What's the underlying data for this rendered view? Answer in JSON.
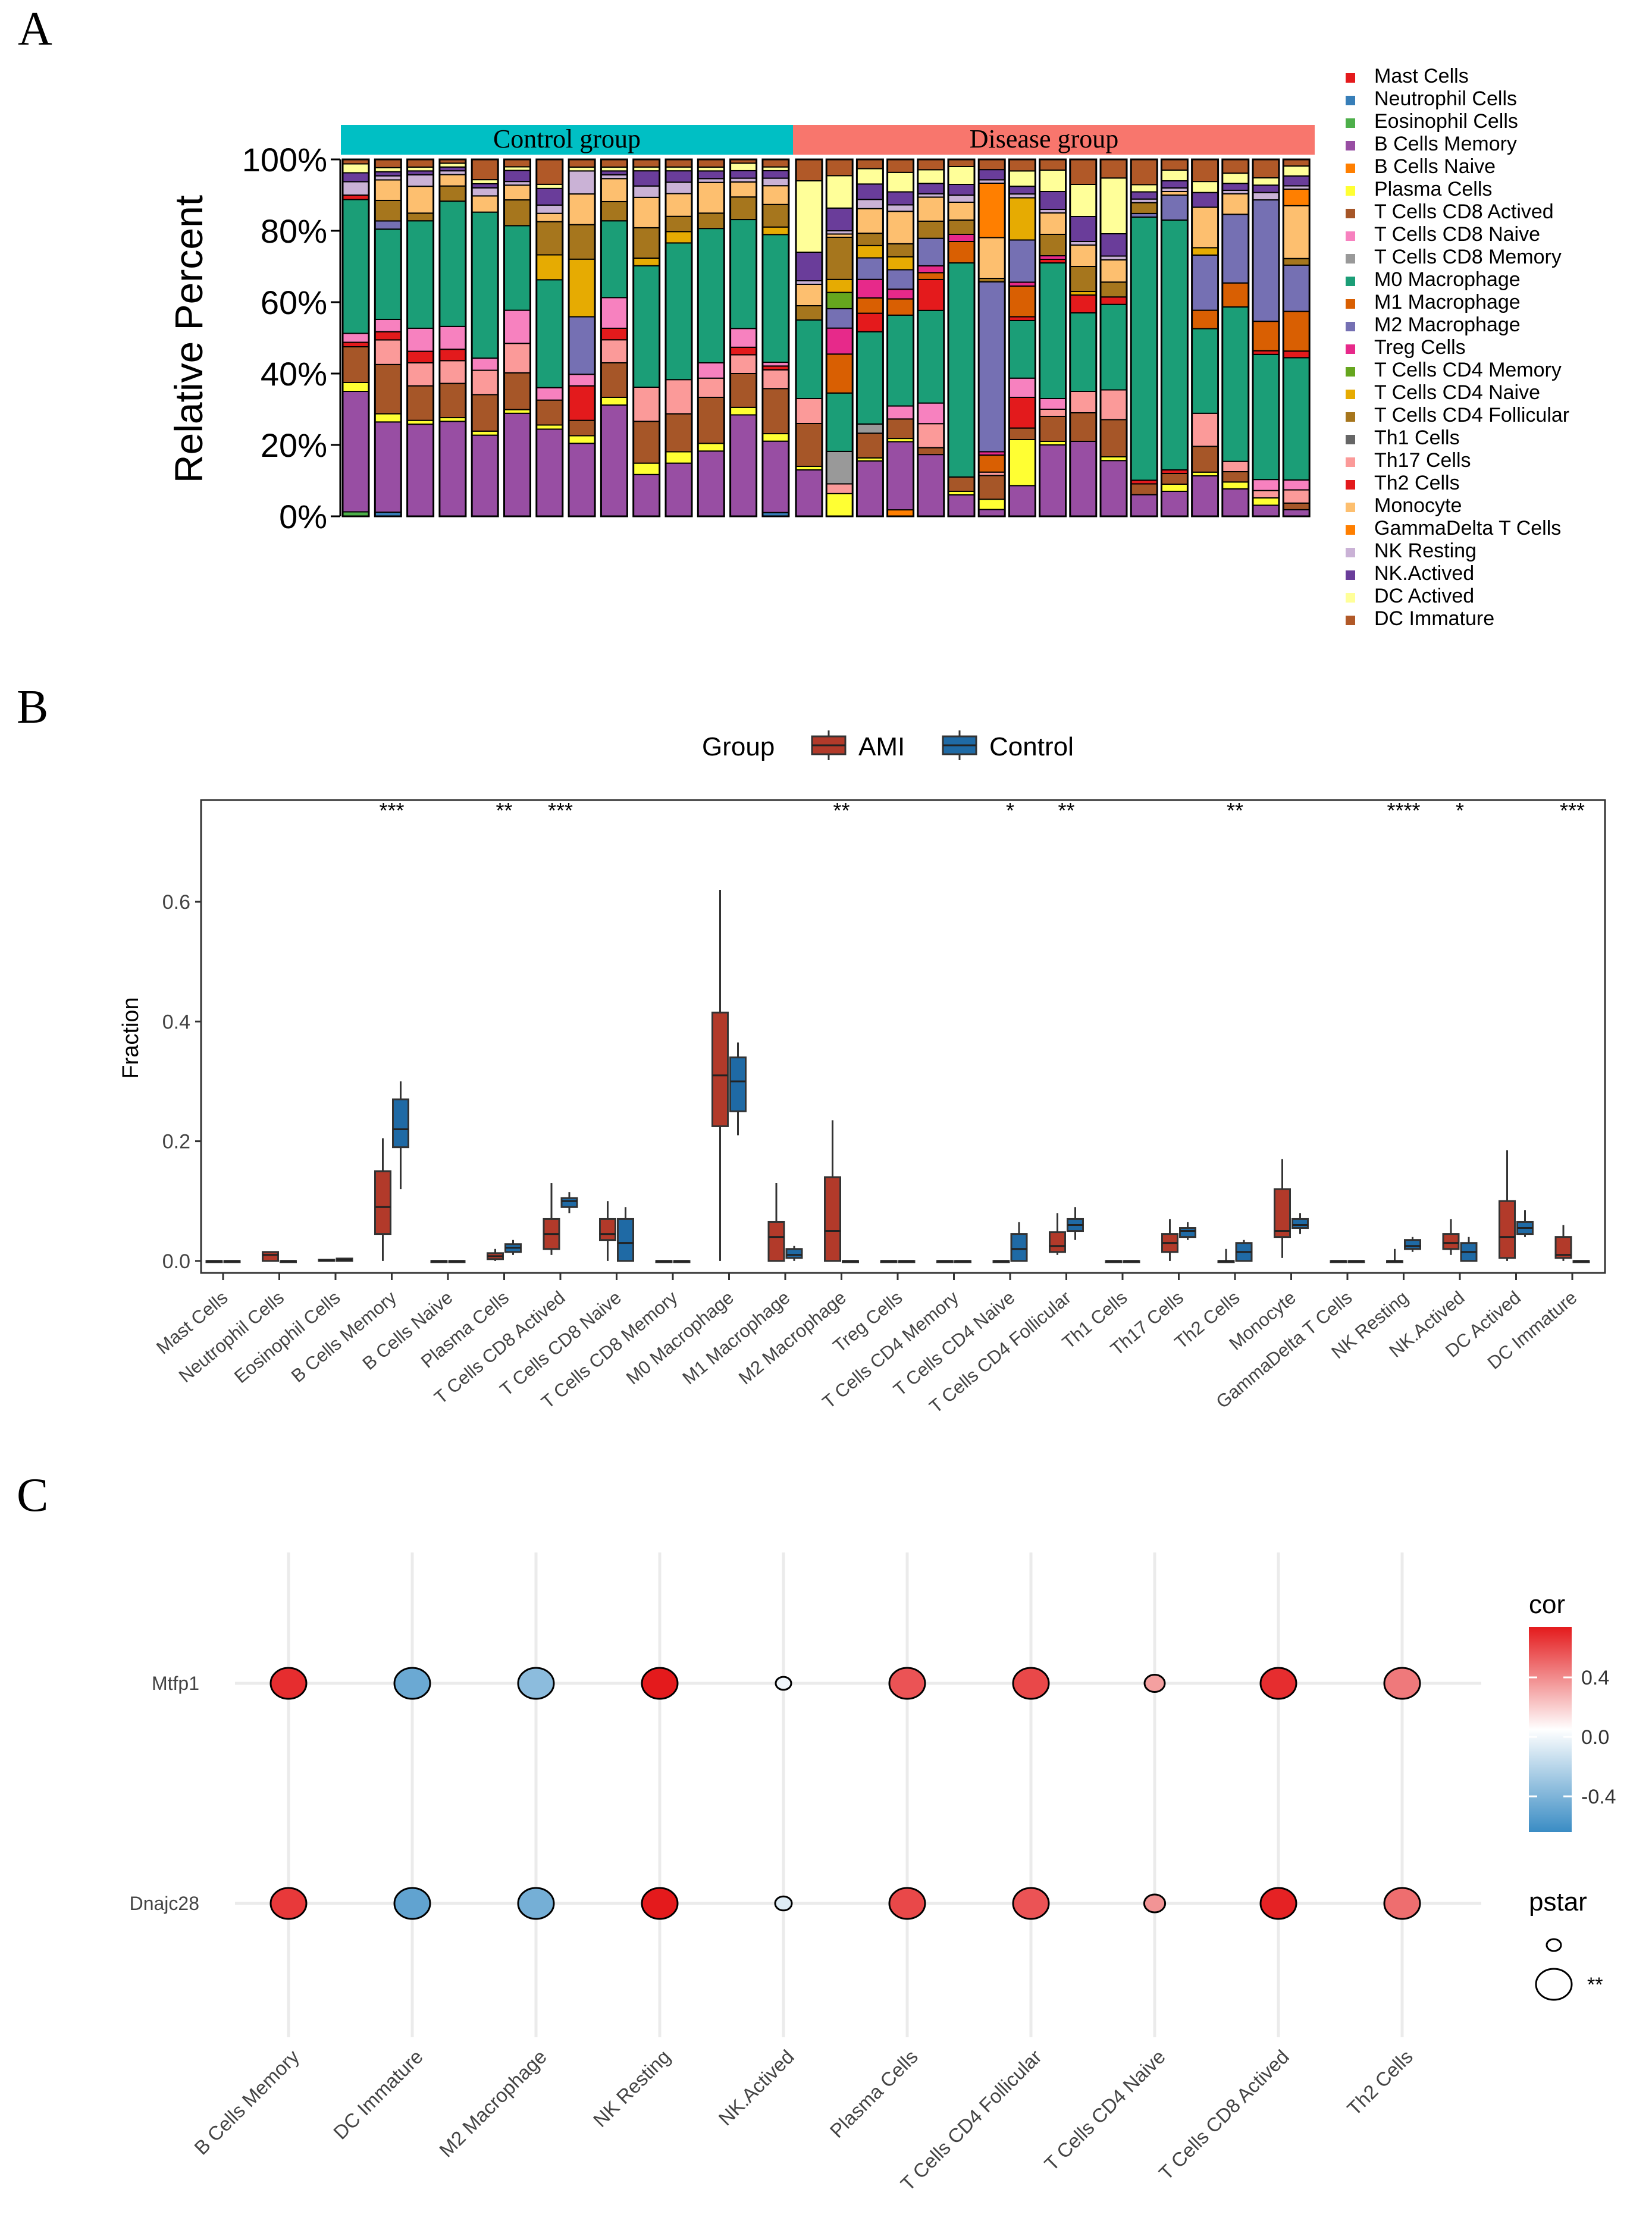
{
  "panel_labels": [
    "A",
    "B",
    "C"
  ],
  "cell_types": [
    "Mast Cells",
    "Neutrophil Cells",
    "Eosinophil Cells",
    "B Cells Memory",
    "B Cells Naive",
    "Plasma Cells",
    "T Cells CD8 Actived",
    "T Cells CD8 Naive",
    "T Cells CD8 Memory",
    "M0 Macrophage",
    "M1 Macrophage",
    "M2 Macrophage",
    "Treg Cells",
    "T Cells CD4 Memory",
    "T Cells CD4 Naive",
    "T Cells CD4 Follicular",
    "Th1 Cells",
    "Th17 Cells",
    "Th2 Cells",
    "Monocyte",
    "GammaDelta T Cells",
    "NK Resting",
    "NK.Actived",
    "DC Actived",
    "DC Immature"
  ],
  "chart_data": [
    {
      "type": "bar",
      "subtype": "stacked-100",
      "panel": "A",
      "ylabel": "Relative Percent",
      "yticks": [
        "0%",
        "20%",
        "40%",
        "60%",
        "80%",
        "100%"
      ],
      "ylim": [
        0,
        100
      ],
      "groups": [
        {
          "name": "Control group",
          "count": 14,
          "color": "#00BFC4"
        },
        {
          "name": "Disease group",
          "count": 17,
          "color": "#F8766D"
        }
      ],
      "legend": [
        "Mast Cells",
        "Neutrophil Cells",
        "Eosinophil Cells",
        "B Cells Memory",
        "B Cells Naive",
        "Plasma Cells",
        "T Cells CD8 Actived",
        "T Cells CD8 Naive",
        "T Cells CD8 Memory",
        "M0 Macrophage",
        "M1 Macrophage",
        "M2 Macrophage",
        "Treg Cells",
        "T Cells CD4 Memory",
        "T Cells CD4 Naive",
        "T Cells CD4 Follicular",
        "Th1 Cells",
        "Th17 Cells",
        "Th2 Cells",
        "Monocyte",
        "GammaDelta T Cells",
        "NK Resting",
        "NK.Actived",
        "DC Actived",
        "DC Immature"
      ],
      "colors": [
        "#E41A1C",
        "#377EB8",
        "#4DAF4A",
        "#984EA3",
        "#FF7F00",
        "#FFFF33",
        "#A65628",
        "#F781BF",
        "#999999",
        "#1B9E77",
        "#D95F02",
        "#7570B3",
        "#E7298A",
        "#66A61E",
        "#E6AB02",
        "#A6761D",
        "#666666",
        "#FB9A99",
        "#E31A1C",
        "#FDBF6F",
        "#FF7F00",
        "#CAB2D6",
        "#6A3D9A",
        "#FFFF99",
        "#B15928"
      ],
      "stack_order": [
        1,
        2,
        4,
        3,
        5,
        6,
        17,
        18,
        8,
        7,
        9,
        0,
        10,
        12,
        11,
        13,
        14,
        15,
        16,
        19,
        20,
        21,
        22,
        23,
        24
      ],
      "samples": [
        [
          1,
          0,
          1,
          27,
          0,
          2,
          8,
          2,
          0,
          30,
          0,
          0,
          0,
          0,
          0,
          0,
          0,
          0,
          1,
          0,
          0,
          3,
          2,
          2,
          1
        ],
        [
          0,
          1,
          0,
          22,
          0,
          2,
          12,
          3,
          0,
          22,
          0,
          2,
          0,
          0,
          0,
          5,
          0,
          6,
          2,
          5,
          0,
          1,
          1,
          1,
          2
        ],
        [
          0,
          0,
          0,
          24,
          0,
          1,
          9,
          6,
          0,
          28,
          0,
          0,
          0,
          0,
          0,
          2,
          0,
          6,
          3,
          7,
          0,
          3,
          1,
          1,
          2
        ],
        [
          0,
          0,
          0,
          25,
          0,
          1,
          9,
          6,
          0,
          33,
          0,
          0,
          0,
          0,
          0,
          4,
          0,
          6,
          3,
          3,
          0,
          1,
          1,
          1,
          1
        ],
        [
          0,
          0,
          0,
          20,
          0,
          1,
          9,
          3,
          0,
          36,
          0,
          0,
          0,
          0,
          0,
          0,
          0,
          6,
          0,
          4,
          0,
          2,
          1,
          1,
          5
        ],
        [
          0,
          0,
          0,
          28,
          0,
          1,
          10,
          9,
          0,
          23,
          0,
          0,
          0,
          0,
          0,
          7,
          0,
          8,
          0,
          4,
          0,
          1,
          3,
          1,
          2
        ],
        [
          0,
          0,
          0,
          21,
          0,
          1,
          6,
          3,
          0,
          26,
          0,
          0,
          0,
          0,
          6,
          8,
          0,
          0,
          0,
          2,
          0,
          2,
          4,
          1,
          6
        ],
        [
          0,
          0,
          0,
          19,
          0,
          2,
          4,
          3,
          0,
          0,
          0,
          15,
          0,
          0,
          15,
          9,
          0,
          0,
          9,
          8,
          0,
          6,
          0,
          1,
          2
        ],
        [
          0,
          0,
          0,
          29,
          0,
          2,
          9,
          8,
          0,
          20,
          0,
          0,
          0,
          0,
          0,
          5,
          0,
          6,
          3,
          6,
          0,
          1,
          1,
          1,
          2
        ],
        [
          0,
          0,
          0,
          11,
          0,
          3,
          11,
          0,
          0,
          32,
          0,
          0,
          0,
          0,
          2,
          8,
          0,
          9,
          0,
          8,
          0,
          3,
          4,
          1,
          2
        ],
        [
          0,
          0,
          0,
          14,
          0,
          3,
          10,
          0,
          0,
          36,
          0,
          0,
          0,
          0,
          3,
          4,
          0,
          9,
          0,
          6,
          0,
          3,
          3,
          1,
          2
        ],
        [
          0,
          0,
          0,
          17,
          0,
          2,
          12,
          4,
          0,
          35,
          0,
          0,
          0,
          0,
          0,
          4,
          0,
          5,
          0,
          8,
          0,
          1,
          2,
          1,
          2
        ],
        [
          0,
          0,
          0,
          27,
          0,
          2,
          9,
          5,
          0,
          29,
          0,
          0,
          0,
          0,
          0,
          6,
          0,
          5,
          2,
          4,
          0,
          1,
          2,
          2,
          1
        ],
        [
          0,
          1,
          0,
          19,
          0,
          2,
          12,
          1,
          0,
          34,
          0,
          0,
          0,
          0,
          2,
          6,
          0,
          5,
          1,
          5,
          0,
          2,
          2,
          1,
          2
        ]
      ]
    },
    {
      "type": "box",
      "panel": "B",
      "ylabel": "Fraction",
      "ylim": [
        -0.02,
        0.77
      ],
      "yticks": [
        0.0,
        0.2,
        0.4,
        0.6
      ],
      "legend_title": "Group",
      "series": [
        {
          "name": "AMI",
          "color": "#B23A2A",
          "stats": [
            [
              0,
              0,
              0,
              0,
              0
            ],
            [
              0,
              0,
              0.01,
              0.015,
              0.015
            ],
            [
              0,
              0,
              0.001,
              0.002,
              0.002
            ],
            [
              0,
              0.045,
              0.09,
              0.15,
              0.205
            ],
            [
              0,
              0,
              0,
              0,
              0
            ],
            [
              0,
              0.003,
              0.008,
              0.013,
              0.02
            ],
            [
              0.01,
              0.02,
              0.045,
              0.07,
              0.13
            ],
            [
              0,
              0.035,
              0.045,
              0.07,
              0.1
            ],
            [
              0,
              0,
              0,
              0,
              0
            ],
            [
              0,
              0.225,
              0.31,
              0.415,
              0.62
            ],
            [
              0,
              0,
              0.04,
              0.065,
              0.13
            ],
            [
              0,
              0,
              0.05,
              0.14,
              0.235
            ],
            [
              0,
              0,
              0,
              0,
              0
            ],
            [
              0,
              0,
              0,
              0,
              0
            ],
            [
              0,
              0,
              0,
              0,
              0
            ],
            [
              0.01,
              0.015,
              0.025,
              0.048,
              0.08
            ],
            [
              0,
              0,
              0,
              0,
              0
            ],
            [
              0,
              0.015,
              0.03,
              0.045,
              0.07
            ],
            [
              0,
              0,
              0,
              0,
              0.02
            ],
            [
              0.005,
              0.04,
              0.05,
              0.12,
              0.17
            ],
            [
              0,
              0,
              0,
              0,
              0
            ],
            [
              0,
              0,
              0,
              0,
              0.02
            ],
            [
              0.01,
              0.02,
              0.03,
              0.045,
              0.07
            ],
            [
              0,
              0.005,
              0.04,
              0.1,
              0.185
            ],
            [
              0,
              0.005,
              0.01,
              0.04,
              0.06
            ]
          ]
        },
        {
          "name": "Control",
          "color": "#1F6AA5",
          "stats": [
            [
              0,
              0,
              0,
              0,
              0
            ],
            [
              0,
              0,
              0,
              0,
              0
            ],
            [
              0,
              0,
              0.002,
              0.004,
              0.004
            ],
            [
              0.12,
              0.19,
              0.22,
              0.27,
              0.3
            ],
            [
              0,
              0,
              0,
              0,
              0
            ],
            [
              0.01,
              0.015,
              0.022,
              0.028,
              0.035
            ],
            [
              0.08,
              0.09,
              0.1,
              0.105,
              0.115
            ],
            [
              0,
              0,
              0.03,
              0.07,
              0.09
            ],
            [
              0,
              0,
              0,
              0,
              0
            ],
            [
              0.21,
              0.25,
              0.3,
              0.34,
              0.365
            ],
            [
              0,
              0.005,
              0.01,
              0.02,
              0.025
            ],
            [
              0,
              0,
              0,
              0,
              0
            ],
            [
              0,
              0,
              0,
              0,
              0
            ],
            [
              0,
              0,
              0,
              0,
              0
            ],
            [
              0,
              0,
              0.02,
              0.045,
              0.065
            ],
            [
              0.035,
              0.05,
              0.06,
              0.07,
              0.09
            ],
            [
              0,
              0,
              0,
              0,
              0
            ],
            [
              0.035,
              0.04,
              0.05,
              0.055,
              0.065
            ],
            [
              0,
              0,
              0.015,
              0.03,
              0.035
            ],
            [
              0.045,
              0.055,
              0.06,
              0.07,
              0.08
            ],
            [
              0,
              0,
              0,
              0,
              0
            ],
            [
              0.015,
              0.02,
              0.025,
              0.035,
              0.04
            ],
            [
              0,
              0,
              0.015,
              0.03,
              0.04
            ],
            [
              0.04,
              0.045,
              0.055,
              0.065,
              0.085
            ],
            [
              0,
              0,
              0,
              0,
              0
            ]
          ]
        }
      ],
      "significance": [
        "",
        "",
        "",
        "***",
        "",
        "**",
        "***",
        "",
        "",
        "",
        "",
        "**",
        "",
        "",
        "*",
        "**",
        "",
        "",
        "**",
        "",
        "",
        "****",
        "*",
        "",
        "***"
      ]
    },
    {
      "type": "scatter",
      "subtype": "correlation-dot",
      "panel": "C",
      "rows": [
        "Mtfp1",
        "Dnajc28"
      ],
      "columns": [
        "B Cells Memory",
        "DC Immature",
        "M2 Macrophage",
        "NK Resting",
        "NK.Actived",
        "Plasma Cells",
        "T Cells CD4 Follicular",
        "T Cells CD4 Naive",
        "T Cells CD8 Actived",
        "Th2 Cells"
      ],
      "cor": [
        [
          0.55,
          -0.45,
          -0.35,
          0.62,
          -0.05,
          0.45,
          0.48,
          0.25,
          0.55,
          0.35
        ],
        [
          0.52,
          -0.48,
          -0.42,
          0.65,
          -0.1,
          0.48,
          0.45,
          0.28,
          0.58,
          0.38
        ]
      ],
      "pstar": [
        [
          "**",
          "**",
          "**",
          "**",
          "",
          "**",
          "**",
          "",
          "**",
          "**"
        ],
        [
          "**",
          "**",
          "**",
          "**",
          "",
          "**",
          "**",
          "",
          "**",
          "**"
        ]
      ],
      "legend_cor_title": "cor",
      "legend_cor_ticks": [
        "0.4",
        "0.0",
        "-0.4"
      ],
      "legend_pstar_title": "pstar",
      "legend_pstar_items": [
        "",
        "**"
      ],
      "colors": {
        "high": "#E41A1C",
        "mid": "#FFFFFF",
        "low": "#3A8CC4"
      }
    }
  ]
}
